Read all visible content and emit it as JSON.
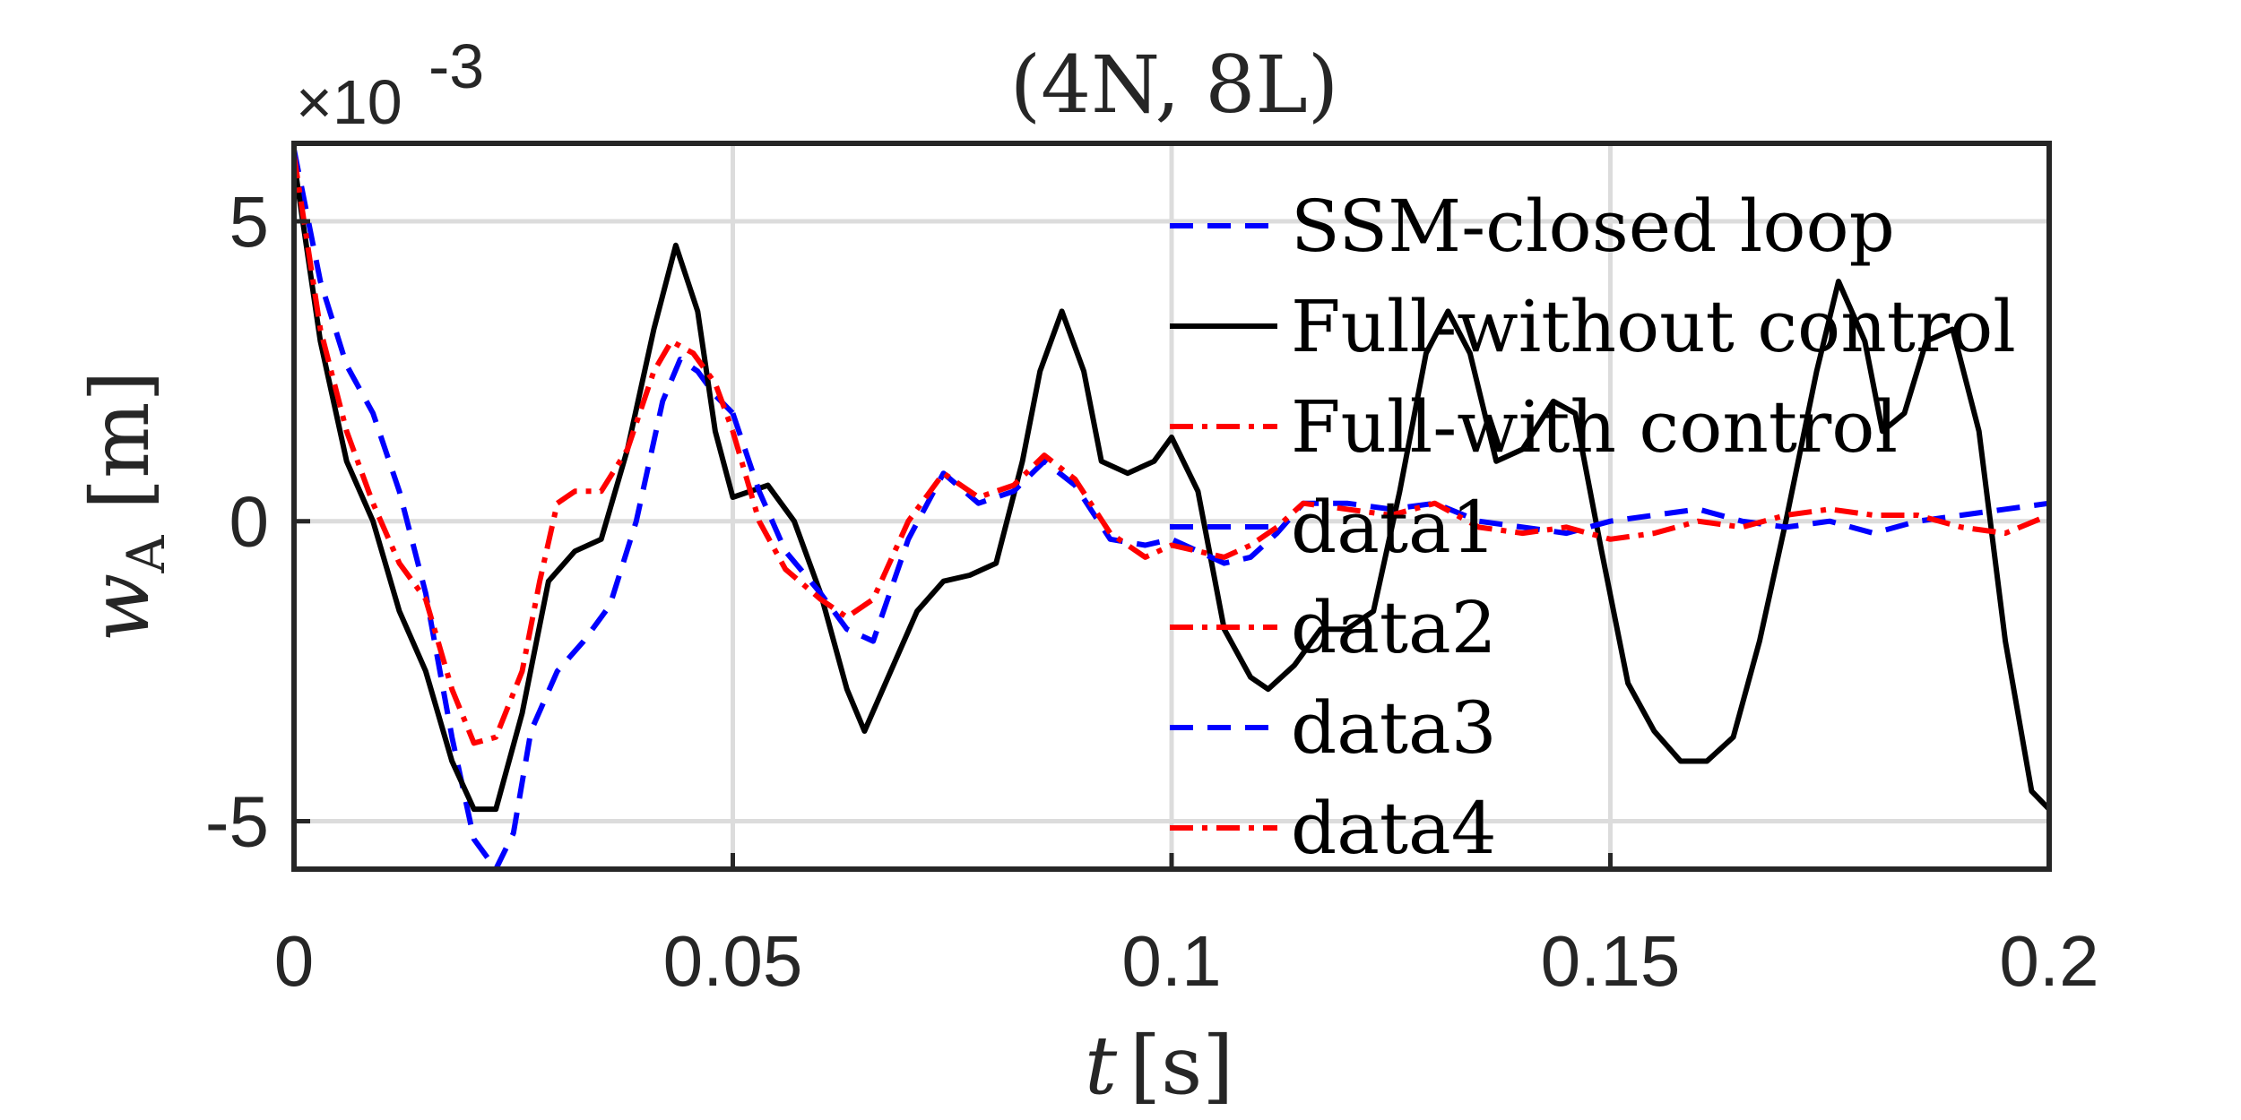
{
  "chart_data": {
    "type": "line",
    "title": "(4N, 8L)",
    "xlabel": "t [s]",
    "ylabel": "w_A [m]",
    "y_exponent_label": "×10",
    "y_exponent_power": "-3",
    "xlim": [
      0,
      0.2
    ],
    "ylim": [
      -5.8,
      6.3
    ],
    "x_ticks": [
      0,
      0.05,
      0.1,
      0.15,
      0.2
    ],
    "x_tick_labels": [
      "0",
      "0.05",
      "0.1",
      "0.15",
      "0.2"
    ],
    "y_ticks": [
      -5,
      0,
      5
    ],
    "y_tick_labels": [
      "-5",
      "0",
      "5"
    ],
    "grid": true,
    "legend_position": "top-right (overlapping plot)",
    "colors": {
      "blue": "#0000ff",
      "black": "#000000",
      "red": "#ff0000",
      "grid": "#dcdcdc",
      "axis": "#262626"
    },
    "series": [
      {
        "name": "SSM-closed loop",
        "color": "#0000ff",
        "style": "dashed",
        "x": [
          0,
          0.003,
          0.006,
          0.009,
          0.012,
          0.015,
          0.018,
          0.0205,
          0.023,
          0.025,
          0.027,
          0.03,
          0.033,
          0.036,
          0.039,
          0.042,
          0.044,
          0.046,
          0.048,
          0.05
        ],
        "y": [
          6.2,
          4.0,
          2.6,
          1.8,
          0.5,
          -1.2,
          -3.6,
          -5.3,
          -5.8,
          -5.2,
          -3.5,
          -2.5,
          -2.0,
          -1.4,
          0.0,
          2.0,
          2.7,
          2.5,
          2.1,
          1.8
        ]
      },
      {
        "name": "Full-without control",
        "color": "#000000",
        "style": "solid",
        "x": [
          0,
          0.003,
          0.006,
          0.009,
          0.012,
          0.015,
          0.018,
          0.0205,
          0.023,
          0.026,
          0.029,
          0.032,
          0.035,
          0.038,
          0.041,
          0.0435,
          0.046,
          0.048,
          0.05,
          0.052,
          0.054,
          0.057,
          0.06,
          0.063,
          0.065,
          0.068,
          0.071,
          0.074,
          0.077,
          0.08,
          0.083,
          0.085,
          0.0875,
          0.09,
          0.092,
          0.095,
          0.098,
          0.1,
          0.103,
          0.106,
          0.109,
          0.111,
          0.114,
          0.117,
          0.12,
          0.123,
          0.126,
          0.129,
          0.1315,
          0.134,
          0.137,
          0.14,
          0.1435,
          0.146,
          0.149,
          0.152,
          0.155,
          0.158,
          0.161,
          0.164,
          0.167,
          0.17,
          0.1735,
          0.176,
          0.179,
          0.181,
          0.1835,
          0.186,
          0.189,
          0.192,
          0.195,
          0.198,
          0.2
        ],
        "y": [
          6.0,
          3.0,
          1.0,
          0.0,
          -1.5,
          -2.5,
          -4.0,
          -4.8,
          -4.8,
          -3.2,
          -1.0,
          -0.5,
          -0.3,
          1.2,
          3.2,
          4.6,
          3.5,
          1.5,
          0.4,
          0.5,
          0.6,
          0.0,
          -1.2,
          -2.8,
          -3.5,
          -2.5,
          -1.5,
          -1.0,
          -0.9,
          -0.7,
          1.0,
          2.5,
          3.5,
          2.5,
          1.0,
          0.8,
          1.0,
          1.4,
          0.5,
          -1.8,
          -2.6,
          -2.8,
          -2.4,
          -1.8,
          -1.8,
          -1.5,
          0.5,
          2.8,
          3.5,
          2.8,
          1.0,
          1.2,
          2.0,
          1.8,
          -0.5,
          -2.7,
          -3.5,
          -4.0,
          -4.0,
          -3.6,
          -2.0,
          0.0,
          2.5,
          4.0,
          3.0,
          1.5,
          1.8,
          3.0,
          3.2,
          1.5,
          -2.0,
          -4.5,
          -4.8
        ]
      },
      {
        "name": "Full-with control",
        "color": "#ff0000",
        "style": "dashdot",
        "x": [
          0,
          0.003,
          0.006,
          0.009,
          0.012,
          0.015,
          0.018,
          0.0205,
          0.023,
          0.026,
          0.028,
          0.03,
          0.032,
          0.035,
          0.038,
          0.041,
          0.043,
          0.0455,
          0.048,
          0.05
        ],
        "y": [
          6.1,
          3.2,
          1.5,
          0.3,
          -0.7,
          -1.3,
          -2.8,
          -3.7,
          -3.6,
          -2.5,
          -1.0,
          0.3,
          0.5,
          0.5,
          1.2,
          2.5,
          3.0,
          2.8,
          2.3,
          1.5
        ]
      },
      {
        "name": "data1",
        "color": "#0000ff",
        "style": "dashed",
        "x": [
          0.05,
          0.053,
          0.056,
          0.06,
          0.063,
          0.066,
          0.07,
          0.074,
          0.078,
          0.082,
          0.0855,
          0.089,
          0.093,
          0.097,
          0.1,
          0.103,
          0.106,
          0.109,
          0.112,
          0.115,
          0.12,
          0.125,
          0.13,
          0.135,
          0.14,
          0.145,
          0.15,
          0.155,
          0.16,
          0.165,
          0.17,
          0.175,
          0.18,
          0.185,
          0.19,
          0.195,
          0.2
        ],
        "y": [
          1.8,
          0.5,
          -0.5,
          -1.2,
          -1.8,
          -2.0,
          -0.3,
          0.8,
          0.3,
          0.5,
          1.0,
          0.6,
          -0.3,
          -0.4,
          -0.3,
          -0.5,
          -0.7,
          -0.6,
          -0.2,
          0.3,
          0.3,
          0.2,
          0.3,
          0.0,
          -0.1,
          -0.2,
          0.0,
          0.1,
          0.2,
          0.0,
          -0.1,
          0.0,
          -0.2,
          0.0,
          0.1,
          0.2,
          0.3
        ]
      },
      {
        "name": "data2",
        "color": "#ff0000",
        "style": "dashdot",
        "x": [
          0.05,
          0.053,
          0.056,
          0.06,
          0.063,
          0.066,
          0.07,
          0.074,
          0.078,
          0.082,
          0.0855,
          0.089,
          0.093,
          0.097,
          0.1,
          0.103,
          0.106,
          0.109,
          0.112,
          0.115,
          0.12,
          0.125,
          0.13,
          0.135,
          0.14,
          0.145,
          0.15,
          0.155,
          0.16,
          0.165,
          0.17,
          0.175,
          0.18,
          0.185,
          0.19,
          0.195,
          0.2
        ],
        "y": [
          1.5,
          0.0,
          -0.8,
          -1.3,
          -1.6,
          -1.3,
          0.0,
          0.8,
          0.4,
          0.6,
          1.1,
          0.7,
          -0.2,
          -0.6,
          -0.4,
          -0.5,
          -0.6,
          -0.4,
          -0.1,
          0.3,
          0.2,
          0.1,
          0.3,
          -0.1,
          -0.2,
          -0.1,
          -0.3,
          -0.2,
          0.0,
          -0.1,
          0.1,
          0.2,
          0.1,
          0.1,
          -0.1,
          -0.2,
          0.1
        ]
      },
      {
        "name": "data3",
        "color": "#0000ff",
        "style": "dashed",
        "x": [],
        "y": []
      },
      {
        "name": "data4",
        "color": "#ff0000",
        "style": "dashdot",
        "x": [],
        "y": []
      }
    ]
  }
}
